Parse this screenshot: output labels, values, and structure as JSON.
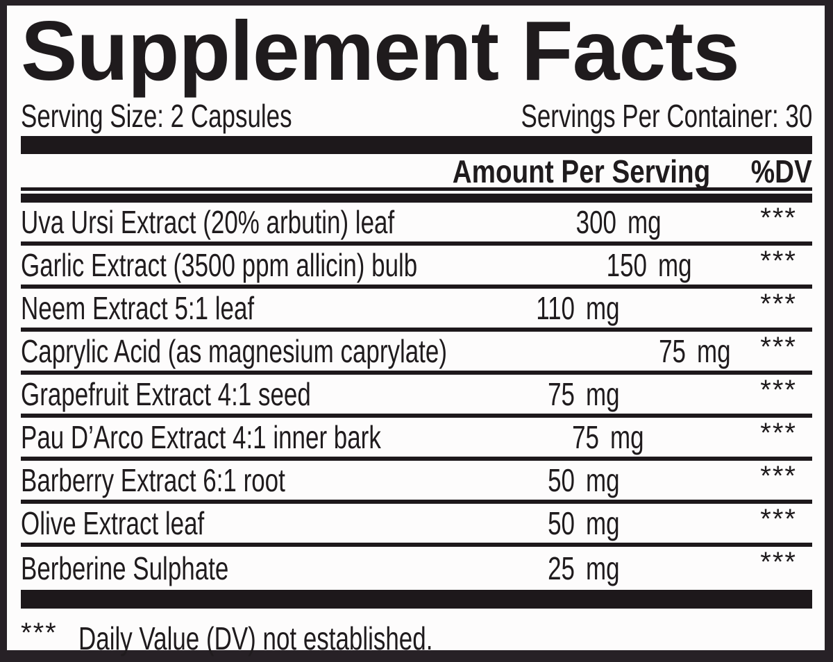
{
  "label": {
    "title": "Supplement Facts",
    "serving_size": "Serving Size: 2 Capsules",
    "servings_per_container": "Servings Per Container: 30",
    "columns": {
      "amount": "Amount Per Serving",
      "dv": "%DV"
    },
    "rows": [
      {
        "name": "Uva Ursi Extract (20% arbutin) leaf",
        "amount": "300",
        "unit": "mg",
        "dv": "***"
      },
      {
        "name": "Garlic Extract (3500 ppm allicin) bulb",
        "amount": "150",
        "unit": "mg",
        "dv": "***"
      },
      {
        "name": "Neem Extract 5:1 leaf",
        "amount": "110",
        "unit": "mg",
        "dv": "***"
      },
      {
        "name": "Caprylic Acid (as magnesium caprylate)",
        "amount": "75",
        "unit": "mg",
        "dv": "***"
      },
      {
        "name": "Grapefruit Extract 4:1 seed",
        "amount": "75",
        "unit": "mg",
        "dv": "***"
      },
      {
        "name": "Pau D’Arco Extract 4:1 inner bark",
        "amount": "75",
        "unit": "mg",
        "dv": "***"
      },
      {
        "name": "Barberry Extract 6:1 root",
        "amount": "50",
        "unit": "mg",
        "dv": "***"
      },
      {
        "name": "Olive Extract leaf",
        "amount": "50",
        "unit": "mg",
        "dv": "***"
      },
      {
        "name": "Berberine Sulphate",
        "amount": "25",
        "unit": "mg",
        "dv": "***"
      }
    ],
    "footnote_marker": "***",
    "footnote_text": "Daily Value (DV) not established.",
    "colors": {
      "ink": "#1d181b",
      "paper": "#fdfcfc",
      "frame": "#272126"
    }
  }
}
